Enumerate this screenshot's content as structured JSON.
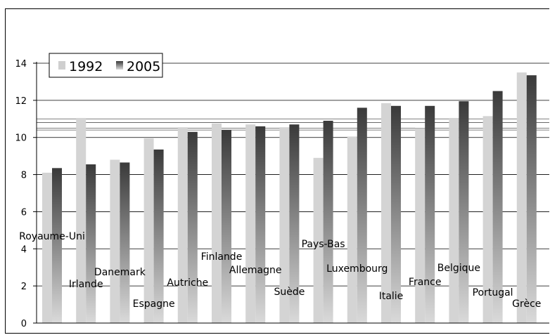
{
  "chart_data": {
    "type": "bar",
    "categories": [
      "Royaume-Uni",
      "Irlande",
      "Danemark",
      "Espagne",
      "Autriche",
      "Finlande",
      "Allemagne",
      "Suède",
      "Pays-Bas",
      "Luxembourg",
      "Italie",
      "France",
      "Belgique",
      "Portugal",
      "Grèce"
    ],
    "series": [
      {
        "name": "1992",
        "values": [
          8.1,
          11.05,
          8.8,
          9.95,
          10.55,
          10.75,
          10.7,
          10.55,
          8.9,
          10.05,
          11.85,
          10.5,
          11.05,
          11.15,
          13.5
        ]
      },
      {
        "name": "2005",
        "values": [
          8.35,
          8.55,
          8.65,
          9.35,
          10.3,
          10.4,
          10.6,
          10.7,
          10.9,
          11.6,
          11.7,
          11.7,
          11.95,
          12.5,
          13.35
        ]
      }
    ],
    "reference_lines": [
      11.0,
      10.8,
      10.5,
      10.4
    ],
    "ylim": [
      0,
      14
    ],
    "yticks": [
      0,
      2,
      4,
      6,
      8,
      10,
      12,
      14
    ],
    "title": "",
    "xlabel": "",
    "ylabel": "",
    "legend_position": "top-left",
    "grid": true,
    "colors": {
      "s1992": "#d4d4d4",
      "s2005_top": "#3c3c3c",
      "s2005_bottom": "#d8d8d8"
    }
  }
}
